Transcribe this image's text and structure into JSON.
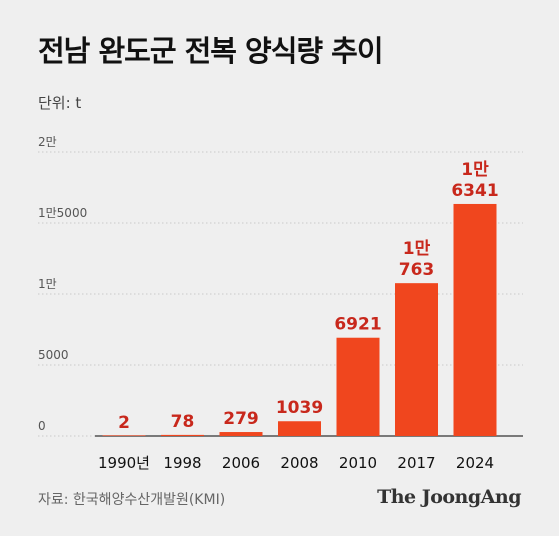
{
  "title": "전남 완도군 전복 양식량 추이",
  "unit": "단위: t",
  "source": "자료: 한국해양수산개발원(KMI)",
  "brand": "The JoongAng",
  "colors": {
    "bar": "#f0461e",
    "value_label": "#c8281c",
    "grid": "#c9c9c9",
    "axis_text": "#555555",
    "category_text": "#111111"
  },
  "chart_data": {
    "type": "bar",
    "categories": [
      "1990년",
      "1998",
      "2006",
      "2008",
      "2010",
      "2017",
      "2024"
    ],
    "values": [
      2,
      78,
      279,
      1039,
      6921,
      10763,
      16341
    ],
    "value_labels": [
      [
        "2"
      ],
      [
        "78"
      ],
      [
        "279"
      ],
      [
        "1039"
      ],
      [
        "6921"
      ],
      [
        "1만",
        "763"
      ],
      [
        "1만",
        "6341"
      ]
    ],
    "y_ticks": [
      {
        "value": 0,
        "label": "0"
      },
      {
        "value": 5000,
        "label": "5000"
      },
      {
        "value": 10000,
        "label": "1만"
      },
      {
        "value": 15000,
        "label": "1만5000"
      },
      {
        "value": 20000,
        "label": "2만"
      }
    ],
    "ylim": [
      0,
      20000
    ],
    "grid": true,
    "legend": "none"
  }
}
